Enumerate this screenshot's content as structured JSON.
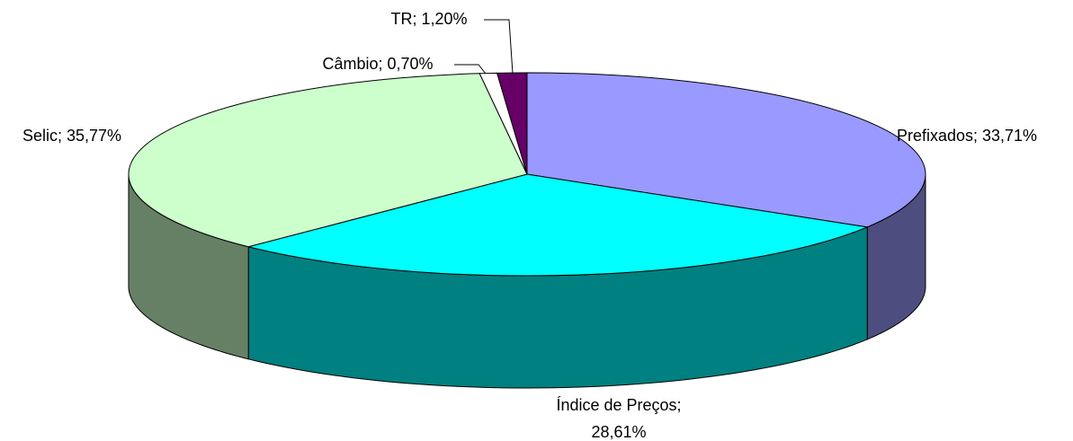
{
  "chart_data": {
    "type": "pie3d",
    "categories": [
      "Prefixados",
      "Índice de Preços",
      "Selic",
      "Câmbio",
      "TR"
    ],
    "values": [
      33.71,
      28.61,
      35.77,
      0.7,
      1.2
    ],
    "value_labels": [
      "Prefixados; 33,71%",
      "Índice de Preços;\n28,61%",
      "Selic; 35,77%",
      "Câmbio; 0,70%",
      "TR; 1,20%"
    ],
    "colors": [
      "#9999ff",
      "#00ffff",
      "#ccffcc",
      "#ffffff",
      "#660066"
    ]
  }
}
